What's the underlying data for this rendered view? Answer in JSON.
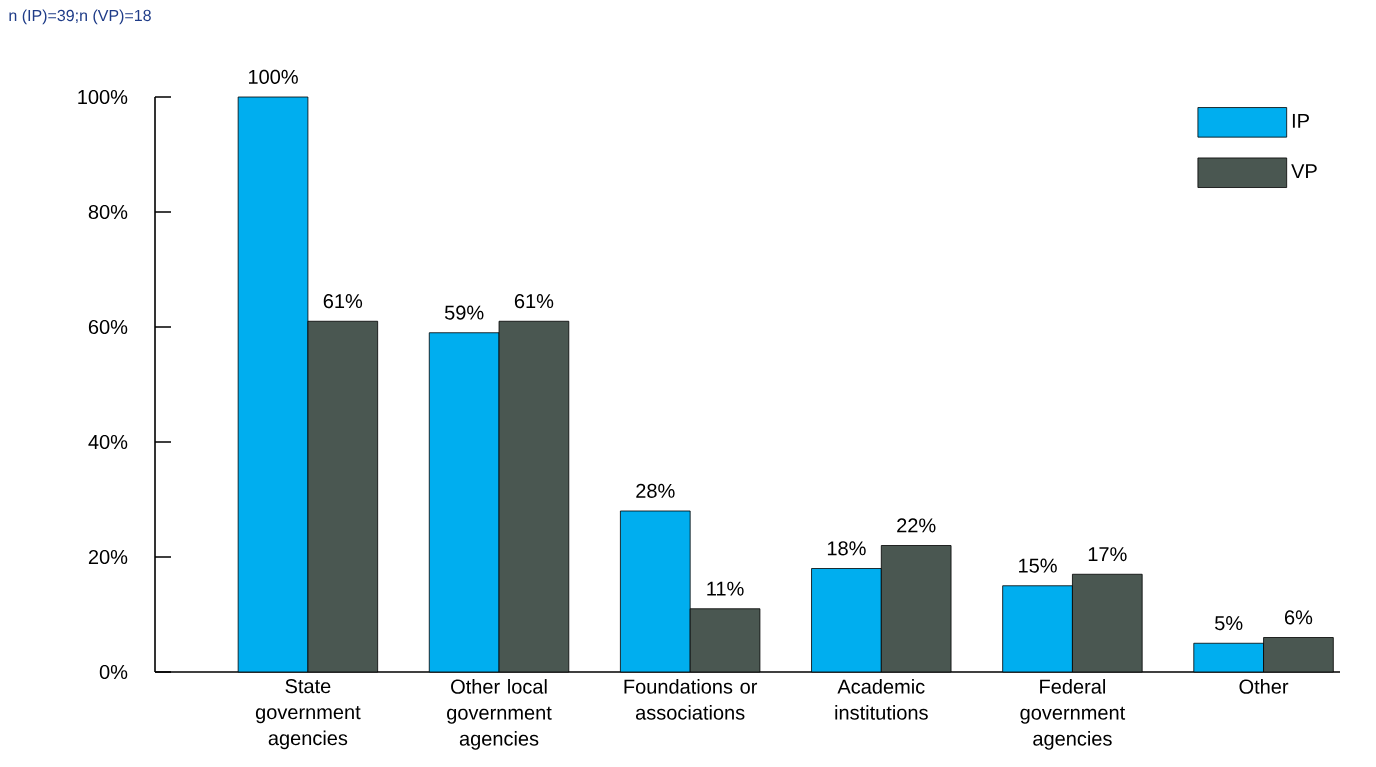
{
  "chart_data": {
    "type": "bar",
    "annotations": [
      "n (IP)=39;n (VP)=18"
    ],
    "categories": [
      "State government agencies",
      "Other local government agencies",
      "Foundations or associations",
      "Academic institutions",
      "Federal government agencies",
      "Other"
    ],
    "series": [
      {
        "name": "IP",
        "color": "#00aeef",
        "values": [
          100,
          59,
          28,
          18,
          15,
          5
        ],
        "value_labels": [
          "100%",
          "59%",
          "28%",
          "18%",
          "15%",
          "5%"
        ]
      },
      {
        "name": "VP",
        "color": "#4a5751",
        "values": [
          61,
          61,
          11,
          22,
          17,
          6
        ],
        "value_labels": [
          "61%",
          "61%",
          "11%",
          "22%",
          "17%",
          "6%"
        ]
      }
    ],
    "ylim": [
      0,
      100
    ],
    "yticks": [
      {
        "value": 0,
        "label": "0%"
      },
      {
        "value": 20,
        "label": "20%"
      },
      {
        "value": 40,
        "label": "40%"
      },
      {
        "value": 60,
        "label": "60%"
      },
      {
        "value": 80,
        "label": "80%"
      },
      {
        "value": 100,
        "label": "100%"
      }
    ],
    "grid": false,
    "legend": "top right"
  }
}
